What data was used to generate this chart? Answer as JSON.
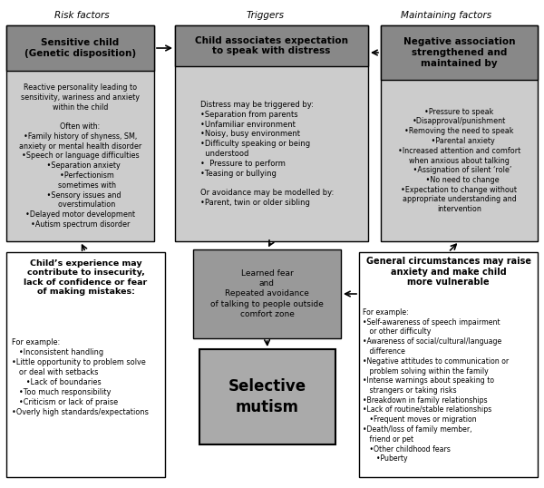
{
  "section_labels": [
    "Risk factors",
    "Triggers",
    "Maintaining factors"
  ],
  "sensitive_child_header": "Sensitive child\n(Genetic disposition)",
  "sensitive_child_body": "Reactive personality leading to\nsensitivity, wariness and anxiety\nwithin the child\n\nOften with:\n•Family history of shyness, SM,\nanxiety or mental health disorder\n•Speech or language difficulties\n   •Separation anxiety\n      •Perfectionism\n      sometimes with\n   •Sensory issues and\n      overstimulation\n•Delayed motor development\n•Autism spectrum disorder",
  "triggers_header": "Child associates expectation\nto speak with distress",
  "triggers_body": "Distress may be triggered by:\n•Separation from parents\n•Unfamiliar environment\n•Noisy, busy environment\n•Difficulty speaking or being\n  understood\n•  Pressure to perform\n•Teasing or bullying\n\nOr avoidance may be modelled by:\n•Parent, twin or older sibling",
  "maintaining_header": "Negative association\nstrengthened and\nmaintained by",
  "maintaining_body": "•Pressure to speak\n•Disapproval/punishment\n•Removing the need to speak\n   •Parental anxiety\n•Increased attention and comfort\nwhen anxious about talking\n   •Assignation of silent ‘role’\n   •No need to change\n•Expectation to change without\nappropriate understanding and\nintervention",
  "learned_fear_text": "Learned fear\nand\nRepeated avoidance\nof talking to people outside\ncomfort zone",
  "selective_mutism_text": "Selective\nmutism",
  "child_experience_header": "Child’s experience may\ncontribute to insecurity,\nlack of confidence or fear\nof making mistakes:",
  "child_experience_body": "For example:\n   •Inconsistent handling\n•Little opportunity to problem solve\n   or deal with setbacks\n      •Lack of boundaries\n   •Too much responsibility\n   •Criticism or lack of praise\n•Overly high standards/expectations",
  "general_circumstances_header": "General circumstances may raise\nanxiety and make child\nmore vulnerable",
  "general_circumstances_body": "For example:\n•Self-awareness of speech impairment\n   or other difficulty\n•Awareness of social/cultural/language\n   difference\n•Negative attitudes to communication or\n   problem solving within the family\n•Intense warnings about speaking to\n   strangers or taking risks\n•Breakdown in family relationships\n•Lack of routine/stable relationships\n   •Frequent moves or migration\n•Death/loss of family member,\n   friend or pet\n   •Other childhood fears\n      •Puberty",
  "header_bg": "#888888",
  "body_bg": "#cccccc",
  "learned_fear_bg": "#999999",
  "selective_mutism_bg": "#aaaaaa",
  "white": "#ffffff",
  "light_gray": "#e8e8e8",
  "black": "#000000"
}
